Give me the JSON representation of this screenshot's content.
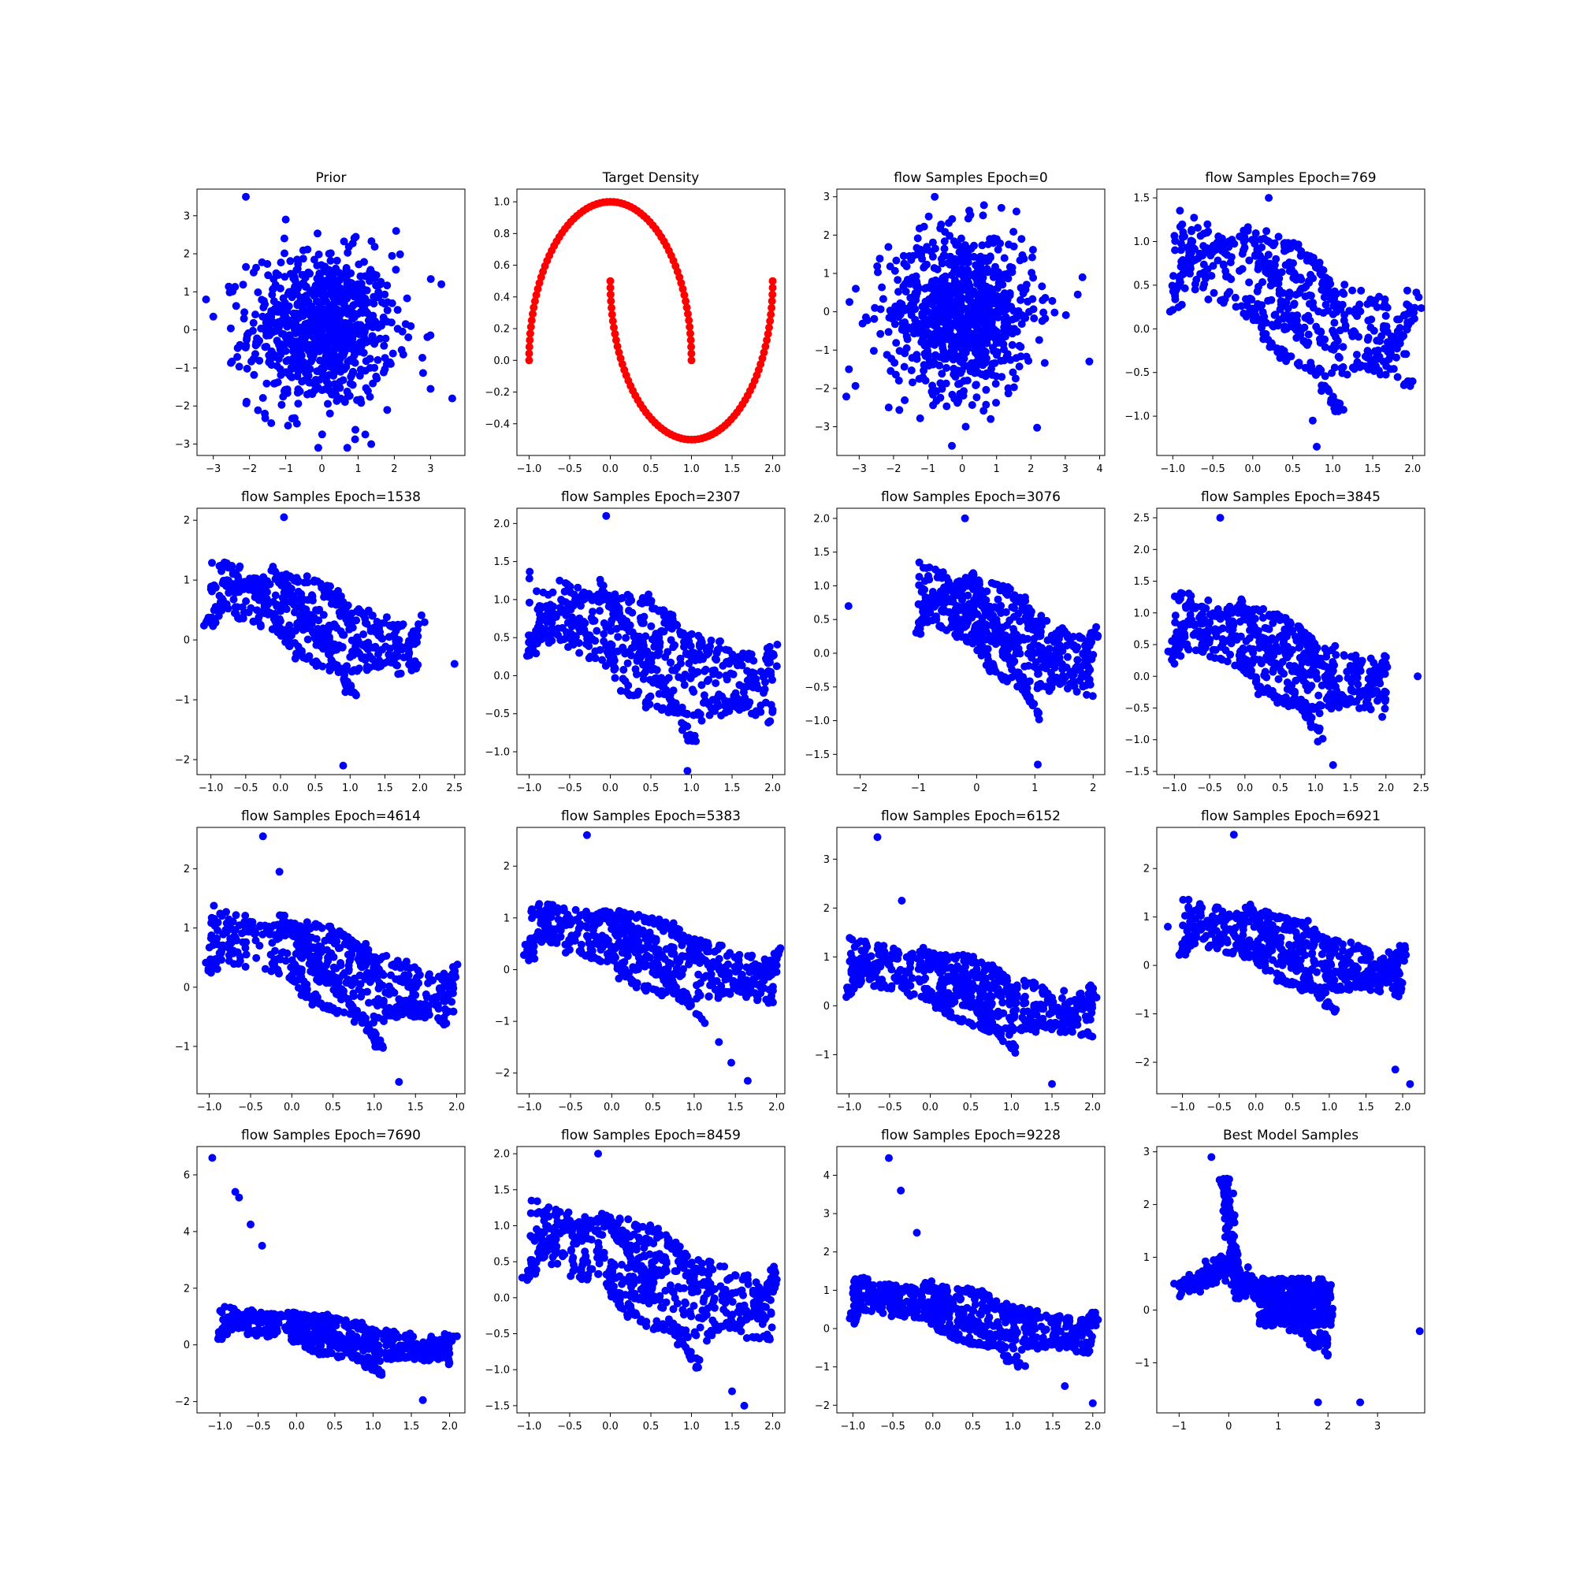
{
  "chart_data": [
    {
      "type": "scatter",
      "title": "Prior",
      "color": "#0000ff",
      "dist": "gauss",
      "sx": 1.0,
      "sy": 1.0,
      "n": 850,
      "xlim": [
        -3.45,
        3.95
      ],
      "ylim": [
        -3.3,
        3.7
      ],
      "xticks": [
        -3,
        -2,
        -1,
        0,
        1,
        2,
        3
      ],
      "yticks": [
        -3,
        -2,
        -1,
        0,
        1,
        2,
        3
      ],
      "points": [
        [
          -2.1,
          3.5
        ],
        [
          3.6,
          -1.8
        ],
        [
          -3.2,
          0.8
        ],
        [
          -3.0,
          0.35
        ],
        [
          3.3,
          1.2
        ],
        [
          3.0,
          -1.55
        ],
        [
          -0.1,
          -3.1
        ],
        [
          0.7,
          -3.1
        ],
        [
          1.2,
          -2.75
        ],
        [
          -1.4,
          -2.45
        ],
        [
          2.05,
          2.6
        ],
        [
          -1.0,
          2.9
        ]
      ]
    },
    {
      "type": "scatter",
      "title": "Target Density",
      "color": "#ff0000",
      "dist": "moons",
      "n": 150,
      "xlim": [
        -1.15,
        2.15
      ],
      "ylim": [
        -0.6,
        1.08
      ],
      "xticks": [
        -1.0,
        -0.5,
        0.0,
        0.5,
        1.0,
        1.5,
        2.0
      ],
      "yticks": [
        -0.4,
        -0.2,
        0.0,
        0.2,
        0.4,
        0.6,
        0.8,
        1.0
      ]
    },
    {
      "type": "scatter",
      "title": "flow Samples Epoch=0",
      "color": "#0000ff",
      "dist": "gauss",
      "sx": 1.05,
      "sy": 1.05,
      "n": 850,
      "xlim": [
        -3.65,
        4.15
      ],
      "ylim": [
        -3.75,
        3.2
      ],
      "xticks": [
        -3,
        -2,
        -1,
        0,
        1,
        2,
        3,
        4
      ],
      "yticks": [
        -3,
        -2,
        -1,
        0,
        1,
        2,
        3
      ],
      "points": [
        [
          -0.8,
          3.0
        ],
        [
          3.7,
          -1.3
        ],
        [
          -3.3,
          -1.5
        ],
        [
          -0.3,
          -3.5
        ],
        [
          3.5,
          0.9
        ],
        [
          -3.1,
          0.6
        ],
        [
          0.1,
          -3.0
        ]
      ]
    },
    {
      "type": "scatter",
      "title": "flow Samples Epoch=769",
      "color": "#0000ff",
      "dist": "flow",
      "n": 600,
      "xlim": [
        -1.2,
        2.15
      ],
      "ylim": [
        -1.45,
        1.6
      ],
      "xticks": [
        -1.0,
        -0.5,
        0.0,
        0.5,
        1.0,
        1.5,
        2.0
      ],
      "yticks": [
        -1.0,
        -0.5,
        0.0,
        0.5,
        1.0,
        1.5
      ],
      "points": [
        [
          0.2,
          1.5
        ],
        [
          0.8,
          -1.35
        ],
        [
          0.75,
          -1.05
        ]
      ]
    },
    {
      "type": "scatter",
      "title": "flow Samples Epoch=1538",
      "color": "#0000ff",
      "dist": "flow",
      "n": 600,
      "xlim": [
        -1.2,
        2.65
      ],
      "ylim": [
        -2.25,
        2.2
      ],
      "xticks": [
        -1.0,
        -0.5,
        0.0,
        0.5,
        1.0,
        1.5,
        2.0,
        2.5
      ],
      "yticks": [
        -2,
        -1,
        0,
        1,
        2
      ],
      "points": [
        [
          0.05,
          2.05
        ],
        [
          0.9,
          -2.1
        ],
        [
          2.5,
          -0.4
        ],
        [
          -1.0,
          0.85
        ]
      ]
    },
    {
      "type": "scatter",
      "title": "flow Samples Epoch=2307",
      "color": "#0000ff",
      "dist": "flow",
      "n": 650,
      "xlim": [
        -1.15,
        2.15
      ],
      "ylim": [
        -1.3,
        2.2
      ],
      "xticks": [
        -1.0,
        -0.5,
        0.0,
        0.5,
        1.0,
        1.5,
        2.0
      ],
      "yticks": [
        -1.0,
        -0.5,
        0.0,
        0.5,
        1.0,
        1.5,
        2.0
      ],
      "points": [
        [
          -0.05,
          2.1
        ],
        [
          0.95,
          -1.25
        ],
        [
          2.0,
          -0.45
        ]
      ]
    },
    {
      "type": "scatter",
      "title": "flow Samples Epoch=3076",
      "color": "#0000ff",
      "dist": "flow",
      "n": 650,
      "xlim": [
        -2.4,
        2.2
      ],
      "ylim": [
        -1.8,
        2.15
      ],
      "xticks": [
        -2,
        -1,
        0,
        1,
        2
      ],
      "yticks": [
        -1.5,
        -1.0,
        -0.5,
        0.0,
        0.5,
        1.0,
        1.5,
        2.0
      ],
      "points": [
        [
          -2.2,
          0.7
        ],
        [
          -0.2,
          2.0
        ],
        [
          1.05,
          -1.65
        ]
      ]
    },
    {
      "type": "scatter",
      "title": "flow Samples Epoch=3845",
      "color": "#0000ff",
      "dist": "flow",
      "n": 650,
      "xlim": [
        -1.25,
        2.55
      ],
      "ylim": [
        -1.55,
        2.65
      ],
      "xticks": [
        -1.0,
        -0.5,
        0.0,
        0.5,
        1.0,
        1.5,
        2.0,
        2.5
      ],
      "yticks": [
        -1.5,
        -1.0,
        -0.5,
        0.0,
        0.5,
        1.0,
        1.5,
        2.0,
        2.5
      ],
      "points": [
        [
          -0.35,
          2.5
        ],
        [
          1.25,
          -1.4
        ],
        [
          2.45,
          0.0
        ]
      ]
    },
    {
      "type": "scatter",
      "title": "flow Samples Epoch=4614",
      "color": "#0000ff",
      "dist": "flow",
      "n": 700,
      "xlim": [
        -1.15,
        2.1
      ],
      "ylim": [
        -1.8,
        2.7
      ],
      "xticks": [
        -1.0,
        -0.5,
        0.0,
        0.5,
        1.0,
        1.5,
        2.0
      ],
      "yticks": [
        -1,
        0,
        1,
        2
      ],
      "points": [
        [
          -0.35,
          2.55
        ],
        [
          -0.15,
          1.95
        ],
        [
          1.3,
          -1.6
        ]
      ]
    },
    {
      "type": "scatter",
      "title": "flow Samples Epoch=5383",
      "color": "#0000ff",
      "dist": "flow",
      "n": 700,
      "xlim": [
        -1.15,
        2.1
      ],
      "ylim": [
        -2.4,
        2.75
      ],
      "xticks": [
        -1.0,
        -0.5,
        0.0,
        0.5,
        1.0,
        1.5,
        2.0
      ],
      "yticks": [
        -2,
        -1,
        0,
        1,
        2
      ],
      "points": [
        [
          -0.3,
          2.6
        ],
        [
          1.65,
          -2.15
        ],
        [
          1.45,
          -1.8
        ],
        [
          1.3,
          -1.4
        ]
      ]
    },
    {
      "type": "scatter",
      "title": "flow Samples Epoch=6152",
      "color": "#0000ff",
      "dist": "flow",
      "n": 700,
      "xlim": [
        -1.15,
        2.15
      ],
      "ylim": [
        -1.8,
        3.65
      ],
      "xticks": [
        -1.0,
        -0.5,
        0.0,
        0.5,
        1.0,
        1.5,
        2.0
      ],
      "yticks": [
        -1,
        0,
        1,
        2,
        3
      ],
      "points": [
        [
          -0.65,
          3.45
        ],
        [
          1.5,
          -1.6
        ],
        [
          -0.35,
          2.15
        ]
      ]
    },
    {
      "type": "scatter",
      "title": "flow Samples Epoch=6921",
      "color": "#0000ff",
      "dist": "flow",
      "n": 700,
      "xlim": [
        -1.35,
        2.3
      ],
      "ylim": [
        -2.65,
        2.85
      ],
      "xticks": [
        -1.0,
        -0.5,
        0.0,
        0.5,
        1.0,
        1.5,
        2.0
      ],
      "yticks": [
        -2,
        -1,
        0,
        1,
        2
      ],
      "points": [
        [
          -0.3,
          2.7
        ],
        [
          2.1,
          -2.45
        ],
        [
          1.9,
          -2.15
        ],
        [
          -1.2,
          0.8
        ]
      ]
    },
    {
      "type": "scatter",
      "title": "flow Samples Epoch=7690",
      "color": "#0000ff",
      "dist": "flow",
      "n": 750,
      "xlim": [
        -1.3,
        2.2
      ],
      "ylim": [
        -2.4,
        7.0
      ],
      "xticks": [
        -1.0,
        -0.5,
        0.0,
        0.5,
        1.0,
        1.5,
        2.0
      ],
      "yticks": [
        -2,
        0,
        2,
        4,
        6
      ],
      "points": [
        [
          -1.1,
          6.6
        ],
        [
          -0.8,
          5.4
        ],
        [
          -0.75,
          5.2
        ],
        [
          -0.6,
          4.25
        ],
        [
          -0.45,
          3.5
        ],
        [
          1.65,
          -1.95
        ]
      ]
    },
    {
      "type": "scatter",
      "title": "flow Samples Epoch=8459",
      "color": "#0000ff",
      "dist": "flow",
      "n": 750,
      "xlim": [
        -1.15,
        2.15
      ],
      "ylim": [
        -1.6,
        2.1
      ],
      "xticks": [
        -1.0,
        -0.5,
        0.0,
        0.5,
        1.0,
        1.5,
        2.0
      ],
      "yticks": [
        -1.5,
        -1.0,
        -0.5,
        0.0,
        0.5,
        1.0,
        1.5,
        2.0
      ],
      "points": [
        [
          -0.15,
          2.0
        ],
        [
          1.65,
          -1.5
        ],
        [
          1.5,
          -1.3
        ]
      ]
    },
    {
      "type": "scatter",
      "title": "flow Samples Epoch=9228",
      "color": "#0000ff",
      "dist": "flow",
      "n": 750,
      "xlim": [
        -1.2,
        2.15
      ],
      "ylim": [
        -2.2,
        4.75
      ],
      "xticks": [
        -1.0,
        -0.5,
        0.0,
        0.5,
        1.0,
        1.5,
        2.0
      ],
      "yticks": [
        -2,
        -1,
        0,
        1,
        2,
        3,
        4
      ],
      "points": [
        [
          -0.55,
          4.45
        ],
        [
          -0.4,
          3.6
        ],
        [
          -0.2,
          2.5
        ],
        [
          2.0,
          -1.95
        ],
        [
          1.65,
          -1.5
        ]
      ]
    },
    {
      "type": "scatter",
      "title": "Best Model Samples",
      "color": "#0000ff",
      "dist": "best",
      "n": 800,
      "xlim": [
        -1.45,
        3.95
      ],
      "ylim": [
        -1.95,
        3.1
      ],
      "xticks": [
        -1,
        0,
        1,
        2,
        3
      ],
      "yticks": [
        -1,
        0,
        1,
        2,
        3
      ],
      "points": [
        [
          -0.35,
          2.9
        ],
        [
          1.8,
          -1.75
        ],
        [
          2.65,
          -1.75
        ],
        [
          3.85,
          -0.4
        ],
        [
          -1.1,
          0.5
        ]
      ]
    }
  ]
}
